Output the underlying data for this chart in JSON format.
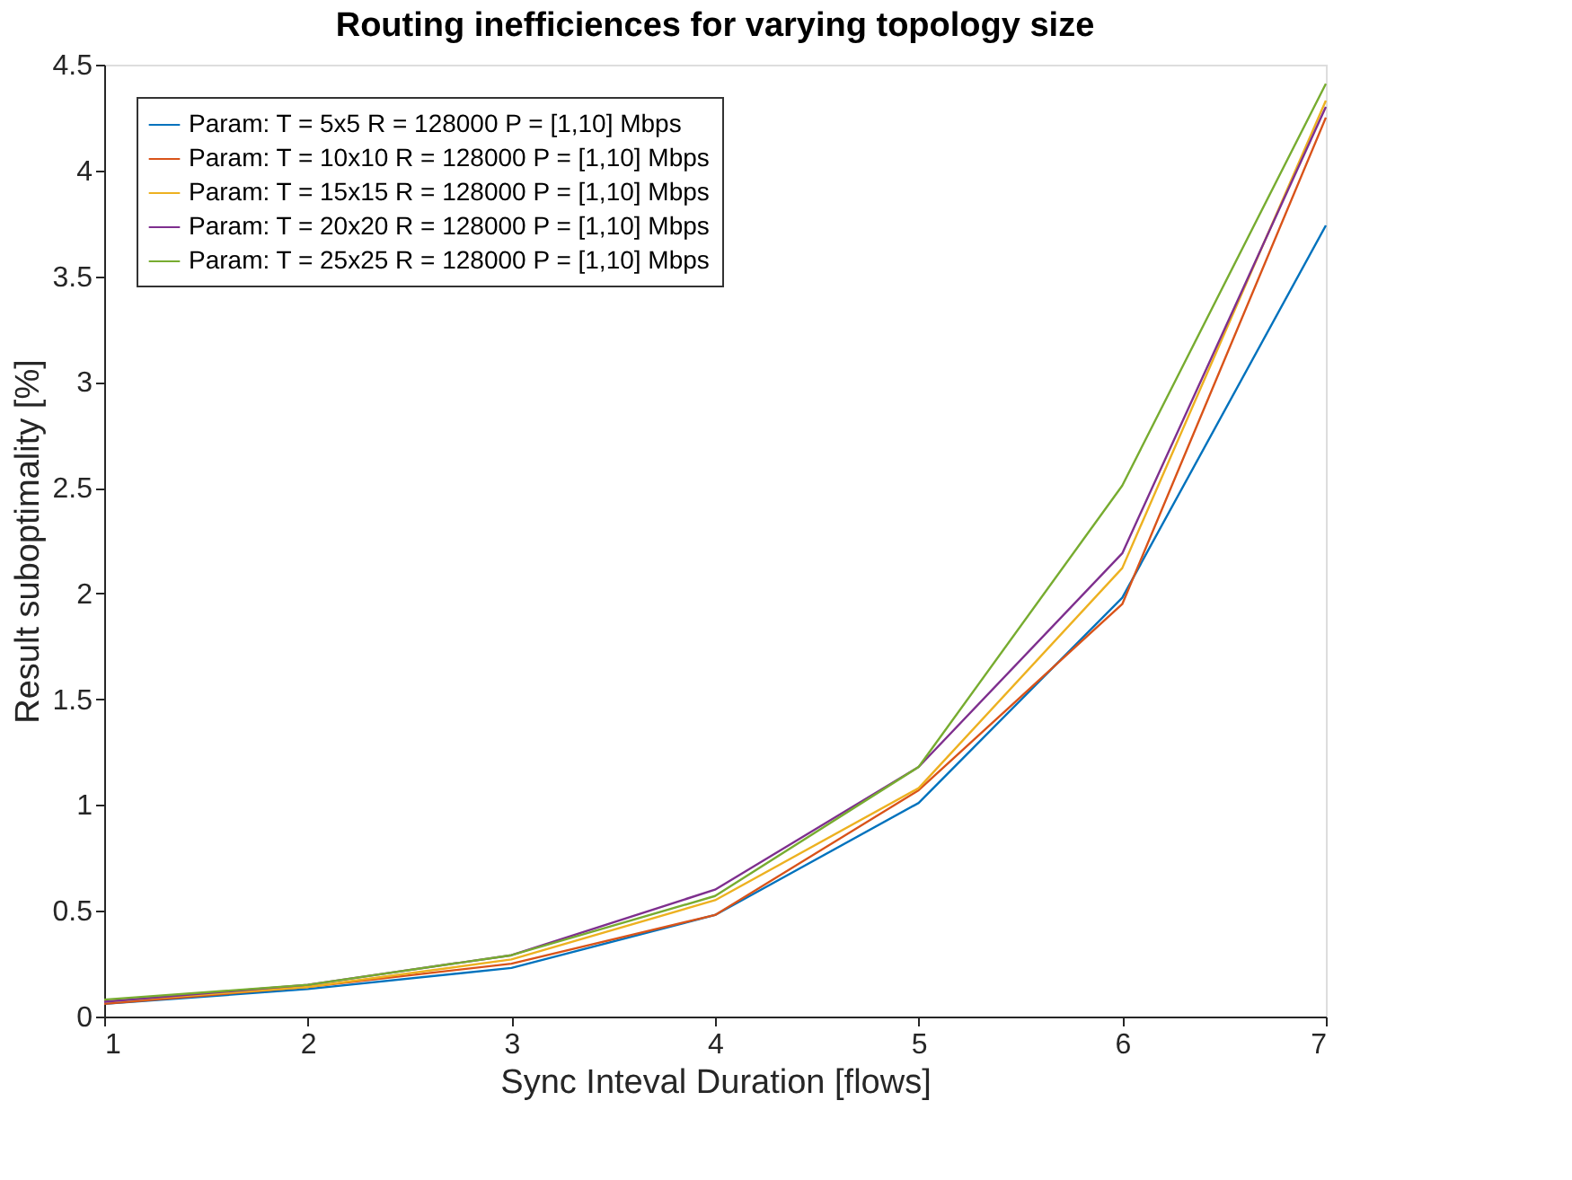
{
  "chart_data": {
    "type": "line",
    "title": "Routing inefficiences for varying topology size",
    "xlabel": "Sync Inteval Duration [flows]",
    "ylabel": "Result suboptimality [%]",
    "x": [
      1,
      2,
      3,
      4,
      5,
      6,
      7
    ],
    "series": [
      {
        "name": "Param: T = 5x5 R = 128000 P = [1,10] Mbps",
        "color": "#0072bd",
        "values": [
          0.06,
          0.13,
          0.23,
          0.48,
          1.01,
          1.98,
          3.74
        ]
      },
      {
        "name": "Param: T = 10x10 R = 128000 P = [1,10] Mbps",
        "color": "#d95319",
        "values": [
          0.06,
          0.14,
          0.25,
          0.48,
          1.07,
          1.95,
          4.25
        ]
      },
      {
        "name": "Param: T = 15x15 R = 128000 P = [1,10] Mbps",
        "color": "#edb120",
        "values": [
          0.07,
          0.14,
          0.27,
          0.55,
          1.08,
          2.12,
          4.33
        ]
      },
      {
        "name": "Param: T = 20x20 R = 128000 P = [1,10] Mbps",
        "color": "#7e2f8e",
        "values": [
          0.07,
          0.15,
          0.29,
          0.6,
          1.18,
          2.19,
          4.3
        ]
      },
      {
        "name": "Param: T = 25x25 R = 128000 P = [1,10] Mbps",
        "color": "#77ac30",
        "values": [
          0.08,
          0.15,
          0.29,
          0.57,
          1.18,
          2.51,
          4.41
        ]
      }
    ],
    "xlim": [
      1,
      7
    ],
    "xticks": [
      1,
      2,
      3,
      4,
      5,
      6,
      7
    ],
    "ylim": [
      0,
      4.5
    ],
    "yticks": [
      0,
      0.5,
      1,
      1.5,
      2,
      2.5,
      3,
      3.5,
      4,
      4.5
    ],
    "grid": false,
    "legend": "top left",
    "marker": "none",
    "line_style": "solid"
  }
}
